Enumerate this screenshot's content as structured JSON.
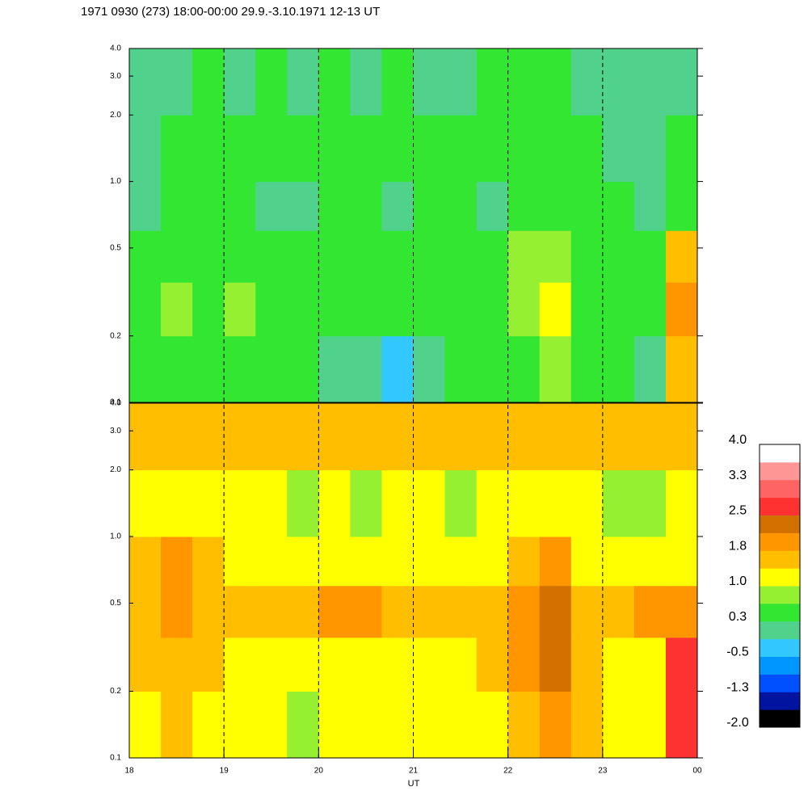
{
  "chart_data": {
    "type": "heatmap",
    "title": "1971 0930 (273) 18:00-00:00 29.9.-3.10.1971  12-13 UT",
    "xlabel": "UT",
    "xlim": [
      18,
      24
    ],
    "xticks": [
      18,
      19,
      20,
      21,
      22,
      23,
      {
        "value": 24,
        "label": "00"
      }
    ],
    "grid": true,
    "x_bins": [
      18,
      18.333,
      18.667,
      19,
      19.333,
      19.667,
      20,
      20.333,
      20.667,
      21,
      21.333,
      21.667,
      22,
      22.333,
      22.667,
      23,
      23.333,
      23.667,
      24
    ],
    "y_bins": [
      0.1,
      0.2,
      0.35,
      0.6,
      1,
      2,
      4
    ],
    "log_y": true,
    "panels": [
      {
        "ylim": [
          0.1,
          4
        ],
        "yticks": [
          0.1,
          0.2,
          0.5,
          {
            "value": 1,
            "label": "1.0"
          },
          {
            "value": 2,
            "label": "2.0"
          },
          {
            "value": 3,
            "label": "3.0"
          },
          {
            "value": 4,
            "label": "4.0"
          }
        ],
        "values": [
          [
            0.3,
            0.3,
            0.4,
            0.3,
            0.3,
            0.3,
            0.1,
            0.0,
            -0.3,
            0.2,
            0.3,
            0.3,
            0.6,
            0.7,
            0.4,
            0.3,
            0.2,
            1.6
          ],
          [
            0.5,
            0.7,
            0.5,
            0.7,
            0.4,
            0.4,
            0.4,
            0.4,
            0.3,
            0.4,
            0.4,
            0.4,
            0.8,
            1.1,
            0.6,
            0.5,
            0.3,
            1.8
          ],
          [
            0.4,
            0.6,
            0.5,
            0.6,
            0.4,
            0.3,
            0.4,
            0.3,
            0.3,
            0.4,
            0.4,
            0.4,
            0.8,
            0.9,
            0.5,
            0.4,
            0.3,
            1.6
          ],
          [
            0.2,
            0.4,
            0.3,
            0.3,
            0.2,
            0.2,
            0.4,
            0.3,
            0.2,
            0.3,
            0.3,
            0.2,
            0.4,
            0.6,
            0.4,
            0.3,
            0.2,
            0.4
          ],
          [
            0.2,
            0.3,
            0.3,
            0.4,
            0.3,
            0.3,
            0.4,
            0.3,
            0.4,
            0.3,
            0.3,
            0.3,
            0.5,
            0.4,
            0.3,
            0.2,
            0.2,
            0.3
          ],
          [
            0.1,
            0.2,
            0.3,
            0.2,
            0.3,
            0.2,
            0.3,
            0.2,
            0.3,
            0.2,
            0.2,
            0.3,
            0.3,
            0.3,
            0.2,
            0.1,
            0.2,
            0.2
          ]
        ]
      },
      {
        "ylim": [
          0.1,
          4
        ],
        "yticks": [
          0.1,
          0.2,
          0.5,
          {
            "value": 1,
            "label": "1.0"
          },
          {
            "value": 2,
            "label": "2.0"
          },
          {
            "value": 3,
            "label": "3.0"
          },
          {
            "value": 4,
            "label": "4.0"
          }
        ],
        "values": [
          [
            1.2,
            1.4,
            1.2,
            1.1,
            1.0,
            0.9,
            1.0,
            1.0,
            1.1,
            1.0,
            1.1,
            1.2,
            1.6,
            1.9,
            1.4,
            1.2,
            1.1,
            2.7
          ],
          [
            1.5,
            1.6,
            1.4,
            1.3,
            1.2,
            1.3,
            1.1,
            1.2,
            1.3,
            1.2,
            1.3,
            1.4,
            1.8,
            2.2,
            1.6,
            1.3,
            1.2,
            2.7
          ],
          [
            1.7,
            1.8,
            1.6,
            1.6,
            1.5,
            1.5,
            1.8,
            1.8,
            1.6,
            1.5,
            1.6,
            1.6,
            1.9,
            2.2,
            1.7,
            1.7,
            1.8,
            2.0
          ],
          [
            1.5,
            1.8,
            1.4,
            1.3,
            1.2,
            1.3,
            1.2,
            1.3,
            1.2,
            1.3,
            1.2,
            1.3,
            1.4,
            1.8,
            1.3,
            1.2,
            1.1,
            1.3
          ],
          [
            1.2,
            1.3,
            1.1,
            1.0,
            1.0,
            0.9,
            1.0,
            0.9,
            1.0,
            1.0,
            0.9,
            1.0,
            1.1,
            1.2,
            1.0,
            0.9,
            0.9,
            1.0
          ],
          [
            1.6,
            1.6,
            1.5,
            1.5,
            1.7,
            1.6,
            1.6,
            1.5,
            1.7,
            1.6,
            1.5,
            1.6,
            1.5,
            1.6,
            1.5,
            1.4,
            1.5,
            1.5
          ]
        ]
      }
    ],
    "colorbar": {
      "clim": [
        -2,
        4
      ],
      "colors": [
        "#000000",
        "#0014a0",
        "#0050ff",
        "#0096ff",
        "#32c8ff",
        "#50d28c",
        "#32e632",
        "#96f032",
        "#ffff00",
        "#ffbe00",
        "#ff9600",
        "#d27000",
        "#ff3232",
        "#ff6464",
        "#ff9696",
        "#ffffff"
      ],
      "ticks": [
        {
          "value": 4,
          "label": "4.0"
        },
        {
          "value": 3.25,
          "label": "3.3"
        },
        {
          "value": 2.5,
          "label": "2.5"
        },
        {
          "value": 1.75,
          "label": "1.8"
        },
        {
          "value": 1,
          "label": "1.0"
        },
        {
          "value": 0.25,
          "label": "0.3"
        },
        {
          "value": -0.5,
          "label": "-0.5"
        },
        {
          "value": -1.25,
          "label": "-1.3"
        },
        {
          "value": -2,
          "label": "-2.0"
        }
      ]
    }
  }
}
